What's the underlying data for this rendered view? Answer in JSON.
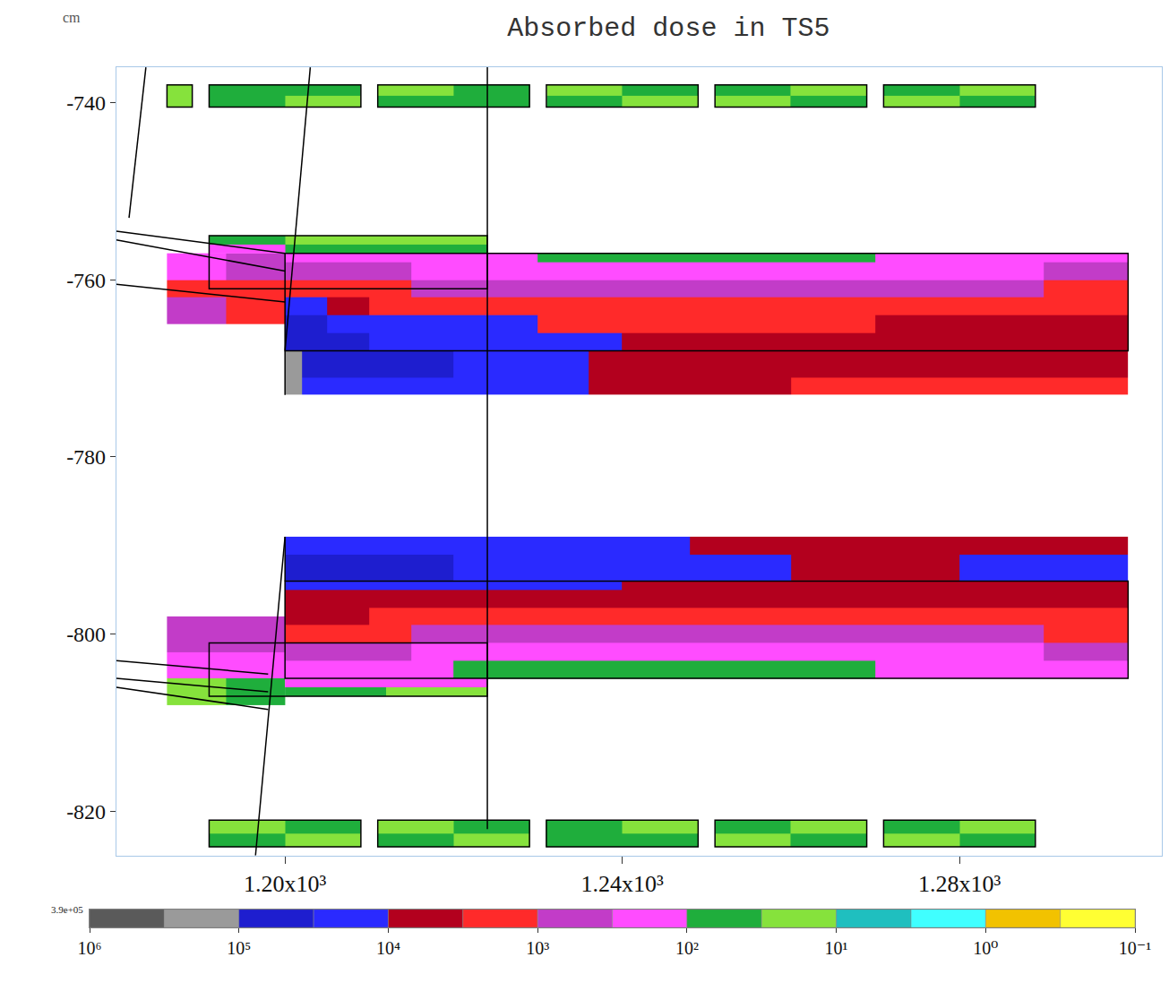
{
  "chart_data": {
    "type": "heatmap",
    "title": "Absorbed dose in TS5",
    "y_label": "cm",
    "log": true,
    "grid": false,
    "xlim": [
      1180,
      1304
    ],
    "xticks": [
      {
        "value": 1200,
        "label": "1.20x10³"
      },
      {
        "value": 1240,
        "label": "1.24x10³"
      },
      {
        "value": 1280,
        "label": "1.28x10³"
      }
    ],
    "ylim": [
      -825,
      -736
    ],
    "yticks": [
      -740,
      -760,
      -780,
      -800,
      -820
    ],
    "regions": [
      {
        "x": [
          1200,
          1205,
          1210,
          1215,
          1220,
          1230,
          1240,
          1250,
          1260,
          1270,
          1280,
          1290,
          1300
        ],
        "y": [
          -768,
          -766,
          -764,
          -762,
          -760,
          -758,
          -757
        ],
        "z": [
          [
            50000,
            40000,
            30000,
            25000,
            20000,
            12000,
            5000,
            4000,
            5000,
            6000,
            7000,
            8000
          ],
          [
            40000,
            30000,
            20000,
            15000,
            10000,
            3000,
            2500,
            2500,
            3000,
            4000,
            5000,
            6000
          ],
          [
            20000,
            8000,
            3000,
            2000,
            1500,
            1200,
            1000,
            1000,
            1200,
            1500,
            2000,
            2500
          ],
          [
            2000,
            1500,
            1200,
            900,
            700,
            500,
            400,
            400,
            500,
            600,
            800,
            1000
          ],
          [
            600,
            500,
            400,
            300,
            250,
            200,
            150,
            150,
            200,
            250,
            300,
            400
          ],
          [
            300,
            200,
            150,
            120,
            100,
            80,
            60,
            60,
            80,
            100,
            150,
            200
          ]
        ]
      },
      {
        "x": [
          1200,
          1202,
          1210,
          1220,
          1230,
          1236,
          1240,
          1250,
          1260,
          1270,
          1280,
          1290,
          1300
        ],
        "y": [
          -773,
          -771,
          -768
        ],
        "z": [
          [
            120000,
            30000,
            25000,
            20000,
            15000,
            6000,
            5000,
            4000,
            3000,
            3000,
            3000,
            3000
          ],
          [
            150000,
            40000,
            35000,
            30000,
            25000,
            8000,
            7000,
            6000,
            6000,
            6000,
            6000,
            6000
          ]
        ]
      },
      {
        "x": [
          1186,
          1193,
          1200
        ],
        "y": [
          -765,
          -762,
          -760,
          -757
        ],
        "z": [
          [
            800,
            1500
          ],
          [
            1200,
            2000
          ],
          [
            300,
            500
          ]
        ]
      },
      {
        "x": [
          1191,
          1200,
          1212,
          1224
        ],
        "y": [
          -757,
          -756,
          -755
        ],
        "z": [
          [
            100,
            80,
            60
          ],
          [
            40,
            30,
            30
          ]
        ]
      },
      {
        "x": [
          1200,
          1210,
          1220,
          1230,
          1240,
          1248,
          1260,
          1270,
          1280,
          1290,
          1300
        ],
        "y": [
          -794,
          -791,
          -789
        ],
        "z": [
          [
            40000,
            35000,
            30000,
            25000,
            20000,
            12000,
            8000,
            8000,
            10000,
            10000
          ],
          [
            30000,
            30000,
            25000,
            20000,
            12000,
            6000,
            5000,
            5000,
            5000,
            5000
          ]
        ]
      },
      {
        "x": [
          1200,
          1205,
          1210,
          1215,
          1220,
          1230,
          1240,
          1250,
          1260,
          1270,
          1280,
          1290,
          1300
        ],
        "y": [
          -805,
          -803,
          -801,
          -799,
          -797,
          -795,
          -794
        ],
        "z": [
          [
            200,
            200,
            150,
            100,
            80,
            60,
            60,
            60,
            80,
            100,
            150,
            200
          ],
          [
            600,
            500,
            400,
            300,
            250,
            200,
            150,
            150,
            200,
            250,
            300,
            400
          ],
          [
            2000,
            1500,
            1200,
            900,
            700,
            500,
            400,
            400,
            500,
            600,
            800,
            1000
          ],
          [
            5000,
            4000,
            3000,
            2500,
            2000,
            1500,
            1200,
            1200,
            1500,
            2000,
            2500,
            3000
          ],
          [
            8000,
            7000,
            6000,
            6000,
            5000,
            5000,
            5000,
            5000,
            5000,
            5000,
            6000,
            7000
          ],
          [
            30000,
            25000,
            20000,
            15000,
            12000,
            10000,
            8000,
            8000,
            8000,
            8000,
            8000,
            8000
          ]
        ]
      },
      {
        "x": [
          1186,
          1193,
          1200
        ],
        "y": [
          -808,
          -805,
          -802,
          -798
        ],
        "z": [
          [
            30,
            60
          ],
          [
            150,
            300
          ],
          [
            400,
            500
          ]
        ]
      },
      {
        "x": [
          1200,
          1212,
          1224
        ],
        "y": [
          -807,
          -806,
          -805
        ],
        "z": [
          [
            40,
            30
          ],
          [
            300,
            200
          ]
        ]
      },
      {
        "x": [
          1186,
          1189,
          1191,
          1200,
          1209,
          1211,
          1220,
          1229,
          1231,
          1240,
          1249,
          1251,
          1260,
          1269,
          1271,
          1280,
          1289
        ],
        "y": [
          -740.5,
          -739.2,
          -738
        ],
        "z": [
          [
            30,
            null,
            50,
            20,
            null,
            40,
            60,
            null,
            50,
            20,
            null,
            30,
            50,
            null,
            20,
            60
          ],
          [
            20,
            null,
            40,
            60,
            null,
            30,
            40,
            null,
            30,
            60,
            null,
            50,
            20,
            null,
            40,
            30
          ]
        ]
      },
      {
        "x": [
          1191,
          1200,
          1209,
          1211,
          1220,
          1229,
          1231,
          1240,
          1249,
          1251,
          1260,
          1269,
          1271,
          1280,
          1289
        ],
        "y": [
          -824,
          -822.5,
          -821
        ],
        "z": [
          [
            40,
            30,
            null,
            50,
            20,
            null,
            40,
            60,
            null,
            30,
            50,
            null,
            20,
            40
          ],
          [
            20,
            50,
            null,
            30,
            40,
            null,
            60,
            30,
            null,
            50,
            20,
            null,
            40,
            30
          ]
        ]
      }
    ],
    "outlines": [
      [
        1186,
        1189,
        -740.5,
        -738
      ],
      [
        1191,
        1209,
        -740.5,
        -738
      ],
      [
        1211,
        1229,
        -740.5,
        -738
      ],
      [
        1231,
        1249,
        -740.5,
        -738
      ],
      [
        1251,
        1269,
        -740.5,
        -738
      ],
      [
        1271,
        1289,
        -740.5,
        -738
      ],
      [
        1191,
        1209,
        -824,
        -821
      ],
      [
        1211,
        1229,
        -824,
        -821
      ],
      [
        1231,
        1249,
        -824,
        -821
      ],
      [
        1251,
        1269,
        -824,
        -821
      ],
      [
        1271,
        1289,
        -824,
        -821
      ],
      [
        1200,
        1300,
        -768,
        -757
      ],
      [
        1191,
        1224,
        -761,
        -755
      ],
      [
        1200,
        1300,
        -805,
        -794
      ],
      [
        1191,
        1224,
        -807,
        -801
      ]
    ],
    "lines": [
      [
        1224,
        -736,
        1224,
        -822
      ],
      [
        1203,
        -736,
        1200,
        -768
      ],
      [
        1200,
        -768,
        1200,
        -773
      ],
      [
        1200,
        -789,
        1196.5,
        -825
      ],
      [
        1200,
        -789,
        1200,
        -794
      ],
      [
        1180,
        -754.5,
        1200,
        -757
      ],
      [
        1180,
        -755.5,
        1200,
        -759
      ],
      [
        1180,
        -760.5,
        1200,
        -762.5
      ],
      [
        1180,
        -803,
        1198,
        -804.5
      ],
      [
        1180,
        -805,
        1198,
        -806.5
      ],
      [
        1180,
        -806,
        1198,
        -808.5
      ],
      [
        1181.5,
        -753,
        1183.5,
        -736
      ]
    ],
    "colorbar": {
      "range": [
        1000000,
        0.1
      ],
      "ticks": [
        {
          "value": 1000000,
          "label": "10⁶"
        },
        {
          "value": 100000,
          "label": "10⁵"
        },
        {
          "value": 10000,
          "label": "10⁴"
        },
        {
          "value": 1000,
          "label": "10³"
        },
        {
          "value": 100,
          "label": "10²"
        },
        {
          "value": 10,
          "label": "10¹"
        },
        {
          "value": 1,
          "label": "10⁰"
        },
        {
          "value": 0.1,
          "label": "10⁻¹"
        }
      ],
      "colors": [
        "#5a5a5a",
        "#9a9a9a",
        "#1e1ecf",
        "#2a2aff",
        "#b3001e",
        "#ff2a2a",
        "#c23cc8",
        "#ff4cff",
        "#1fae3c",
        "#86e23c",
        "#1fbfbf",
        "#40ffff",
        "#f2c200",
        "#ffff33"
      ],
      "max": {
        "value": 390000,
        "label": "3.9e+05"
      }
    }
  }
}
